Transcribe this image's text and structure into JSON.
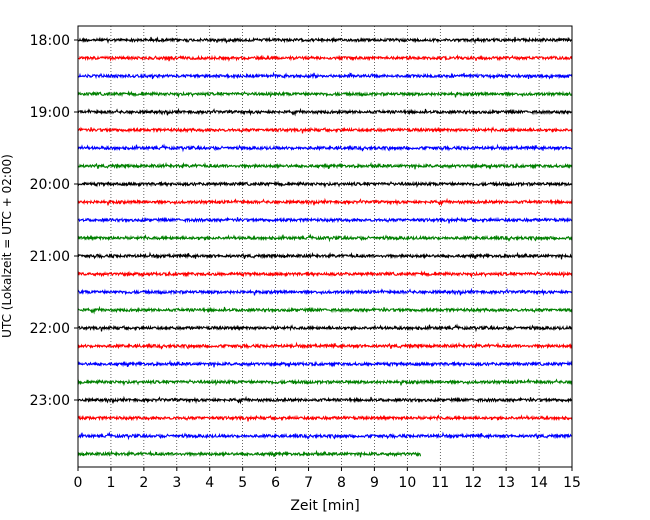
{
  "chart_data": {
    "type": "line",
    "title": "",
    "xlabel": "Zeit  [min]",
    "ylabel": "UTC (Lokalzeit = UTC + 02:00)",
    "xlim": [
      0,
      15
    ],
    "x_ticks": [
      "0",
      "1",
      "2",
      "3",
      "4",
      "5",
      "6",
      "7",
      "8",
      "9",
      "10",
      "11",
      "12",
      "13",
      "14",
      "15"
    ],
    "y_ticks": [
      "18:00",
      "19:00",
      "20:00",
      "21:00",
      "22:00",
      "23:00"
    ],
    "grid": "vertical dotted at each minute",
    "trace_colors": [
      "#000000",
      "#ff0000",
      "#0000ff",
      "#008000"
    ],
    "traces": [
      {
        "start": "18:00",
        "end_minute": 15
      },
      {
        "start": "18:15",
        "end_minute": 15
      },
      {
        "start": "18:30",
        "end_minute": 15
      },
      {
        "start": "18:45",
        "end_minute": 15
      },
      {
        "start": "19:00",
        "end_minute": 15
      },
      {
        "start": "19:15",
        "end_minute": 15
      },
      {
        "start": "19:30",
        "end_minute": 15
      },
      {
        "start": "19:45",
        "end_minute": 15
      },
      {
        "start": "20:00",
        "end_minute": 15
      },
      {
        "start": "20:15",
        "end_minute": 15
      },
      {
        "start": "20:30",
        "end_minute": 15
      },
      {
        "start": "20:45",
        "end_minute": 15
      },
      {
        "start": "21:00",
        "end_minute": 15
      },
      {
        "start": "21:15",
        "end_minute": 15
      },
      {
        "start": "21:30",
        "end_minute": 15
      },
      {
        "start": "21:45",
        "end_minute": 15
      },
      {
        "start": "22:00",
        "end_minute": 15
      },
      {
        "start": "22:15",
        "end_minute": 15
      },
      {
        "start": "22:30",
        "end_minute": 15
      },
      {
        "start": "22:45",
        "end_minute": 15
      },
      {
        "start": "23:00",
        "end_minute": 15
      },
      {
        "start": "23:15",
        "end_minute": 15
      },
      {
        "start": "23:30",
        "end_minute": 15
      },
      {
        "start": "23:45",
        "end_minute": 10.4
      }
    ]
  }
}
